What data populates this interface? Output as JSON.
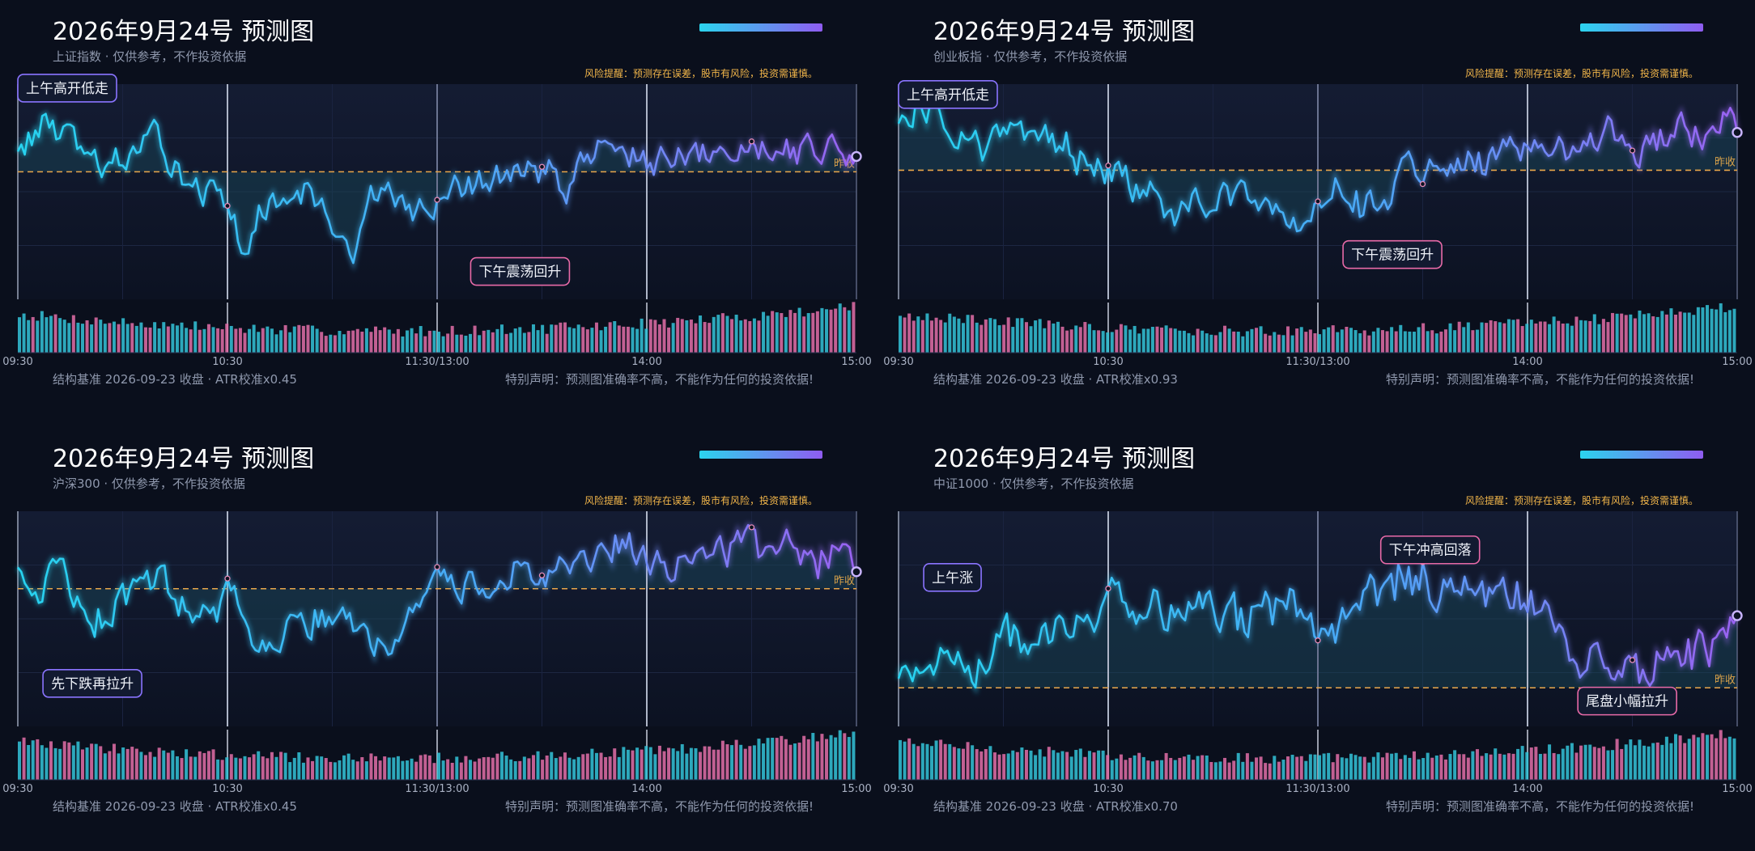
{
  "panels": [
    {
      "title": "2026年9月24号 预测图",
      "subtitle": "上证指数 · 仅供参考，不作投资依据",
      "risk": "风险提醒：预测存在误差，股市有风险，投资需谨慎。",
      "footer_left": "结构基准 2026-09-23 收盘 · ATR校准x0.45",
      "footer_right": "特别声明：预测图准确率不高，不能作为任何的投资依据!"
    },
    {
      "title": "2026年9月24号 预测图",
      "subtitle": "创业板指 · 仅供参考，不作投资依据",
      "risk": "风险提醒：预测存在误差，股市有风险，投资需谨慎。",
      "footer_left": "结构基准 2026-09-23 收盘 · ATR校准x0.93",
      "footer_right": "特别声明：预测图准确率不高，不能作为任何的投资依据!"
    },
    {
      "title": "2026年9月24号 预测图",
      "subtitle": "沪深300 · 仅供参考，不作投资依据",
      "risk": "风险提醒：预测存在误差，股市有风险，投资需谨慎。",
      "footer_left": "结构基准 2026-09-23 收盘 · ATR校准x0.45",
      "footer_right": "特别声明：预测图准确率不高，不能作为任何的投资依据!"
    },
    {
      "title": "2026年9月24号 预测图",
      "subtitle": "中证1000 · 仅供参考，不作投资依据",
      "risk": "风险提醒：预测存在误差，股市有风险，投资需谨慎。",
      "footer_left": "结构基准 2026-09-23 收盘 · ATR校准x0.70",
      "footer_right": "特别声明：预测图准确率不高，不能作为任何的投资依据!"
    }
  ],
  "chart_data": [
    {
      "type": "line",
      "x_ticks": [
        "09:30",
        "10:30",
        "11:30/13:00",
        "14:00",
        "15:00"
      ],
      "baseline_label": "昨收",
      "baseline": 0,
      "ylim": [
        -1.6,
        1.1
      ],
      "keypoints": [
        [
          0,
          0.35
        ],
        [
          0.04,
          0.6
        ],
        [
          0.09,
          0.05
        ],
        [
          0.17,
          0.3
        ],
        [
          0.23,
          -0.25
        ],
        [
          0.27,
          -0.95
        ],
        [
          0.3,
          -0.45
        ],
        [
          0.33,
          -0.2
        ],
        [
          0.37,
          -0.5
        ],
        [
          0.39,
          -1.05
        ],
        [
          0.43,
          -0.3
        ],
        [
          0.47,
          -0.55
        ],
        [
          0.52,
          -0.25
        ],
        [
          0.6,
          0.0
        ],
        [
          0.66,
          -0.1
        ],
        [
          0.7,
          0.4
        ],
        [
          0.76,
          0.05
        ],
        [
          0.83,
          0.15
        ],
        [
          0.9,
          0.4
        ],
        [
          0.95,
          0.25
        ],
        [
          1.0,
          0.35
        ]
      ],
      "annotations": [
        {
          "text": "上午高开低走",
          "x": 0.0,
          "y": 1.05,
          "color": "#8a74ff"
        },
        {
          "text": "下午震荡回升",
          "x": 0.54,
          "y": -1.25,
          "color": "#e86aa8"
        }
      ],
      "colors": {
        "start": "#27d3f0",
        "end": "#9a62f2",
        "baseline": "#e9a64a"
      }
    },
    {
      "type": "line",
      "x_ticks": [
        "09:30",
        "10:30",
        "11:30/13:00",
        "14:00",
        "15:00"
      ],
      "baseline_label": "昨收",
      "baseline": 0,
      "ylim": [
        -1.5,
        1.0
      ],
      "keypoints": [
        [
          0,
          0.55
        ],
        [
          0.02,
          0.75
        ],
        [
          0.05,
          0.6
        ],
        [
          0.1,
          0.3
        ],
        [
          0.18,
          0.3
        ],
        [
          0.24,
          0.05
        ],
        [
          0.29,
          -0.2
        ],
        [
          0.34,
          -0.45
        ],
        [
          0.39,
          -0.25
        ],
        [
          0.47,
          -0.55
        ],
        [
          0.52,
          -0.1
        ],
        [
          0.56,
          -0.4
        ],
        [
          0.62,
          -0.05
        ],
        [
          0.7,
          0.1
        ],
        [
          0.74,
          0.35
        ],
        [
          0.8,
          0.2
        ],
        [
          0.86,
          0.45
        ],
        [
          0.9,
          0.3
        ],
        [
          0.95,
          0.45
        ],
        [
          1.0,
          0.45
        ]
      ],
      "annotations": [
        {
          "text": "上午高开低走",
          "x": 0.0,
          "y": 0.88,
          "color": "#8a74ff"
        },
        {
          "text": "下午震荡回升",
          "x": 0.53,
          "y": -0.98,
          "color": "#e86aa8"
        }
      ],
      "colors": {
        "start": "#27d3f0",
        "end": "#9a62f2",
        "baseline": "#e9a64a"
      }
    },
    {
      "type": "line",
      "x_ticks": [
        "09:30",
        "10:30",
        "11:30/13:00",
        "14:00",
        "15:00"
      ],
      "baseline_label": "昨收",
      "baseline": 0,
      "ylim": [
        -1.6,
        0.9
      ],
      "keypoints": [
        [
          0,
          0.05
        ],
        [
          0.04,
          0.15
        ],
        [
          0.1,
          -0.3
        ],
        [
          0.17,
          0.05
        ],
        [
          0.21,
          -0.35
        ],
        [
          0.26,
          -0.15
        ],
        [
          0.3,
          -0.75
        ],
        [
          0.33,
          -0.4
        ],
        [
          0.38,
          -0.3
        ],
        [
          0.43,
          -0.7
        ],
        [
          0.47,
          -0.15
        ],
        [
          0.53,
          0.0
        ],
        [
          0.6,
          0.1
        ],
        [
          0.66,
          0.25
        ],
        [
          0.72,
          0.5
        ],
        [
          0.78,
          0.3
        ],
        [
          0.85,
          0.45
        ],
        [
          0.9,
          0.4
        ],
        [
          0.95,
          0.35
        ],
        [
          1.0,
          0.45
        ]
      ],
      "annotations": [
        {
          "text": "先下跌再拉升",
          "x": 0.03,
          "y": -1.1,
          "color": "#8a74ff"
        }
      ],
      "colors": {
        "start": "#27d3f0",
        "end": "#9a62f2",
        "baseline": "#e9a64a"
      }
    },
    {
      "type": "line",
      "x_ticks": [
        "09:30",
        "10:30",
        "11:30/13:00",
        "14:00",
        "15:00"
      ],
      "baseline_label": "昨收",
      "baseline": 0,
      "ylim": [
        -0.35,
        1.6
      ],
      "keypoints": [
        [
          0,
          0.15
        ],
        [
          0.05,
          0.3
        ],
        [
          0.1,
          0.25
        ],
        [
          0.15,
          0.5
        ],
        [
          0.2,
          0.6
        ],
        [
          0.25,
          0.75
        ],
        [
          0.3,
          0.65
        ],
        [
          0.35,
          0.8
        ],
        [
          0.4,
          0.6
        ],
        [
          0.45,
          0.75
        ],
        [
          0.5,
          0.5
        ],
        [
          0.55,
          0.8
        ],
        [
          0.6,
          0.95
        ],
        [
          0.65,
          0.9
        ],
        [
          0.7,
          0.85
        ],
        [
          0.75,
          0.75
        ],
        [
          0.8,
          0.4
        ],
        [
          0.85,
          0.15
        ],
        [
          0.9,
          0.25
        ],
        [
          0.95,
          0.35
        ],
        [
          1.0,
          0.5
        ]
      ],
      "annotations": [
        {
          "text": "上午涨",
          "x": 0.03,
          "y": 1.0,
          "color": "#8a74ff"
        },
        {
          "text": "下午冲高回落",
          "x": 0.575,
          "y": 1.25,
          "color": "#e86aa8"
        },
        {
          "text": "尾盘小幅拉升",
          "x": 0.81,
          "y": -0.12,
          "color": "#e86aa8"
        }
      ],
      "colors": {
        "start": "#27d3f0",
        "end": "#9a62f2",
        "baseline": "#e9a64a"
      }
    }
  ]
}
